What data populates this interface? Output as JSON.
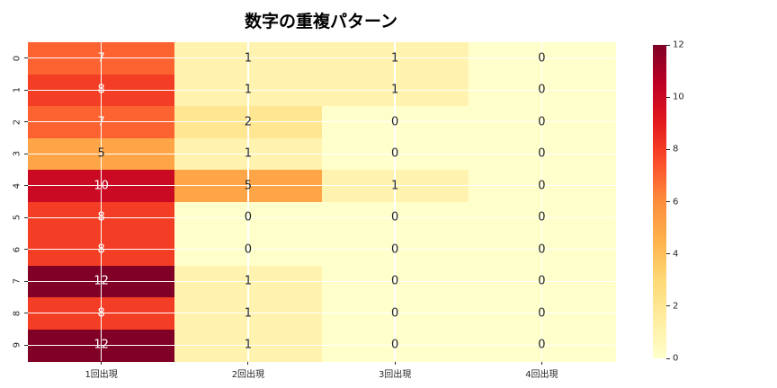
{
  "title": "数字の重複パターン",
  "chart_data": {
    "type": "heatmap",
    "title": "数字の重複パターン",
    "x_labels": [
      "1回出現",
      "2回出現",
      "3回出現",
      "4回出現"
    ],
    "y_labels": [
      "0",
      "1",
      "2",
      "3",
      "4",
      "5",
      "6",
      "7",
      "8",
      "9"
    ],
    "values": [
      [
        7,
        1,
        1,
        0
      ],
      [
        8,
        1,
        1,
        0
      ],
      [
        7,
        2,
        0,
        0
      ],
      [
        5,
        1,
        0,
        0
      ],
      [
        10,
        5,
        1,
        0
      ],
      [
        8,
        0,
        0,
        0
      ],
      [
        8,
        0,
        0,
        0
      ],
      [
        12,
        1,
        0,
        0
      ],
      [
        8,
        1,
        0,
        0
      ],
      [
        12,
        1,
        0,
        0
      ]
    ],
    "vmin": 0,
    "vmax": 12,
    "colormap_name": "YlOrRd",
    "colormap_stops": [
      "#ffffcc",
      "#ffeda0",
      "#fed976",
      "#feb24c",
      "#fd8d3c",
      "#fc4e2a",
      "#e31a1c",
      "#bd0026",
      "#800026"
    ],
    "colorbar_ticks": [
      0,
      2,
      4,
      6,
      8,
      10,
      12
    ],
    "grid_on": true,
    "grid_color": "#ffffff",
    "annotation_dark_color": "#262626",
    "annotation_light_color": "#ffffff",
    "tick_color": "#262626",
    "background_color": "#ffffff",
    "legend_position": "colorbar-right"
  }
}
